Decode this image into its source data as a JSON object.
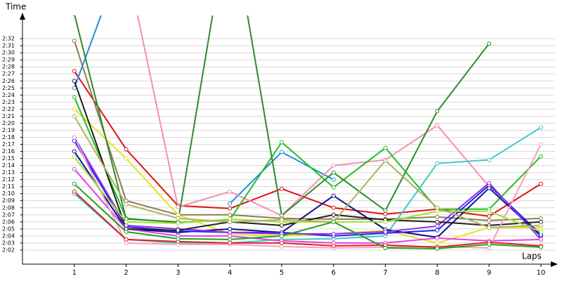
{
  "chart_data": {
    "type": "line",
    "y_label": "Time",
    "x_label": "Laps",
    "xlim": [
      0,
      10
    ],
    "xticks": [
      1,
      2,
      3,
      4,
      5,
      6,
      7,
      8,
      9,
      10
    ],
    "ylim": [
      120,
      155
    ],
    "yticks": [
      {
        "value": 122,
        "label": "2:02"
      },
      {
        "value": 123,
        "label": "2:03"
      },
      {
        "value": 124,
        "label": "2:04"
      },
      {
        "value": 125,
        "label": "2:05"
      },
      {
        "value": 126,
        "label": "2:06"
      },
      {
        "value": 127,
        "label": "2:07"
      },
      {
        "value": 128,
        "label": "2:08"
      },
      {
        "value": 129,
        "label": "2:09"
      },
      {
        "value": 130,
        "label": "2:10"
      },
      {
        "value": 131,
        "label": "2:11"
      },
      {
        "value": 132,
        "label": "2:12"
      },
      {
        "value": 133,
        "label": "2:13"
      },
      {
        "value": 134,
        "label": "2:14"
      },
      {
        "value": 135,
        "label": "2:15"
      },
      {
        "value": 136,
        "label": "2:16"
      },
      {
        "value": 137,
        "label": "2:17"
      },
      {
        "value": 138,
        "label": "2:18"
      },
      {
        "value": 139,
        "label": "2:19"
      },
      {
        "value": 140,
        "label": "2:20"
      },
      {
        "value": 141,
        "label": "2:21"
      },
      {
        "value": 142,
        "label": "2:22"
      },
      {
        "value": 143,
        "label": "2:23"
      },
      {
        "value": 144,
        "label": "2:24"
      },
      {
        "value": 145,
        "label": "2:25"
      },
      {
        "value": 146,
        "label": "2:26"
      },
      {
        "value": 147,
        "label": "2:27"
      },
      {
        "value": 148,
        "label": "2:28"
      },
      {
        "value": 149,
        "label": "2:29"
      },
      {
        "value": 150,
        "label": "2:30"
      },
      {
        "value": 151,
        "label": "2:31"
      },
      {
        "value": 152,
        "label": "2:32"
      }
    ],
    "grid": true,
    "x": [
      1,
      2,
      3,
      4,
      5,
      6,
      7,
      8,
      9,
      10
    ],
    "series": [
      {
        "color": "#e01010",
        "values": [
          147.4,
          136.3,
          128.3,
          127.9,
          130.7,
          128,
          127.1,
          127.8,
          126.8,
          131.4
        ]
      },
      {
        "color": "#1e90e0",
        "values": [
          145,
          165,
          null,
          128.6,
          135.9,
          132,
          null,
          null,
          null,
          null
        ]
      },
      {
        "color": "#f48fb1",
        "values": [
          null,
          163,
          128.1,
          130.3,
          126.9,
          134,
          134.8,
          139.7,
          131,
          null
        ]
      },
      {
        "color": "#8b7d50",
        "values": [
          151.7,
          129,
          127,
          127,
          126.5,
          126.4,
          126.4,
          126.7,
          126.2,
          126.5
        ]
      },
      {
        "color": "#e8e020",
        "values": [
          142,
          135,
          127,
          124.3,
          124,
          124.3,
          124.8,
          123,
          125.2,
          125.2
        ]
      },
      {
        "color": "#22c022",
        "values": [
          143.7,
          126.5,
          125.9,
          126.3,
          137.3,
          130.9,
          136.5,
          127.8,
          127.8,
          135.3
        ]
      },
      {
        "color": "#2e8b2e",
        "values": [
          155.5,
          126.4,
          126,
          170,
          126.9,
          133,
          127.6,
          141.7,
          151.3,
          null
        ]
      },
      {
        "color": "#40c8c8",
        "values": [
          130,
          123.5,
          123,
          123,
          123.5,
          123.6,
          124,
          134.3,
          134.8,
          139.4
        ]
      },
      {
        "color": "#101090",
        "values": [
          136,
          125,
          124.5,
          125,
          124.5,
          129.7,
          124.9,
          123.8,
          130.8,
          124
        ]
      },
      {
        "color": "#2020ff",
        "values": [
          137.5,
          125.3,
          124.7,
          124.5,
          124.5,
          124,
          124.4,
          124.8,
          131.2,
          124.2
        ]
      },
      {
        "color": "#9030e0",
        "values": [
          138,
          125.5,
          125,
          124.5,
          124.3,
          124.3,
          124.6,
          125.4,
          131.5,
          123.5
        ]
      },
      {
        "color": "#e040e0",
        "values": [
          133.5,
          125,
          124,
          124,
          123.3,
          123,
          123,
          123.7,
          123.3,
          123.5
        ]
      },
      {
        "color": "#202020",
        "values": [
          146,
          125,
          124.8,
          126,
          125.5,
          127,
          126.3,
          126,
          125.5,
          126
        ]
      },
      {
        "color": "#f4a0c0",
        "values": [
          138,
          123,
          122.8,
          122.8,
          122.5,
          122.3,
          122.4,
          122.5,
          122.3,
          137
        ]
      },
      {
        "color": "#a0e030",
        "values": [
          135.2,
          126,
          125.8,
          126.4,
          126,
          126,
          126,
          127.5,
          127.5,
          124.6
        ]
      },
      {
        "color": "#e02020",
        "values": [
          130.3,
          123.5,
          123.2,
          123,
          123,
          122.6,
          122.7,
          122.4,
          123.1,
          122.6
        ]
      },
      {
        "color": "#b0b060",
        "values": [
          141,
          128.5,
          126.5,
          126,
          126.3,
          126,
          134.7,
          128,
          125.2,
          125.5
        ]
      },
      {
        "color": "#20a020",
        "values": [
          131.4,
          124.6,
          123.6,
          123.5,
          124,
          126,
          122.3,
          122.2,
          122.8,
          122.4
        ]
      }
    ]
  }
}
